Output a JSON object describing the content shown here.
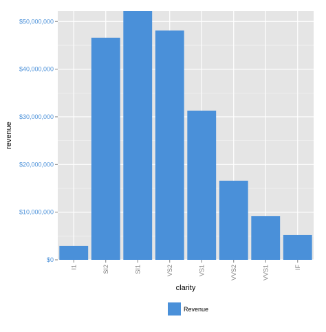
{
  "chart_data": {
    "type": "bar",
    "categories": [
      "I1",
      "SI2",
      "SI1",
      "VS2",
      "VS1",
      "VVS2",
      "VVS1",
      "IF"
    ],
    "values": [
      2900000,
      46600000,
      52200000,
      48100000,
      31300000,
      16600000,
      9200000,
      5200000
    ],
    "xlabel": "clarity",
    "ylabel": "revenue",
    "ylim": [
      0,
      52200000
    ],
    "yticks": [
      0,
      10000000,
      20000000,
      30000000,
      40000000,
      50000000
    ],
    "ytick_labels": [
      "$0",
      "$10,000,000",
      "$20,000,000",
      "$30,000,000",
      "$40,000,000",
      "$50,000,000"
    ],
    "legend": {
      "placement": "bottom",
      "entries": [
        "Revenue"
      ]
    },
    "grid": true
  },
  "colors": {
    "panel_background": "#e5e5e5",
    "grid_major": "#ffffff",
    "grid_minor": "#f2f2f2",
    "bar_fill": "#4a90d9",
    "y_tick_text": "#4a90d9",
    "x_tick_text": "#7f7f7f",
    "axis_title_text": "#000000"
  }
}
